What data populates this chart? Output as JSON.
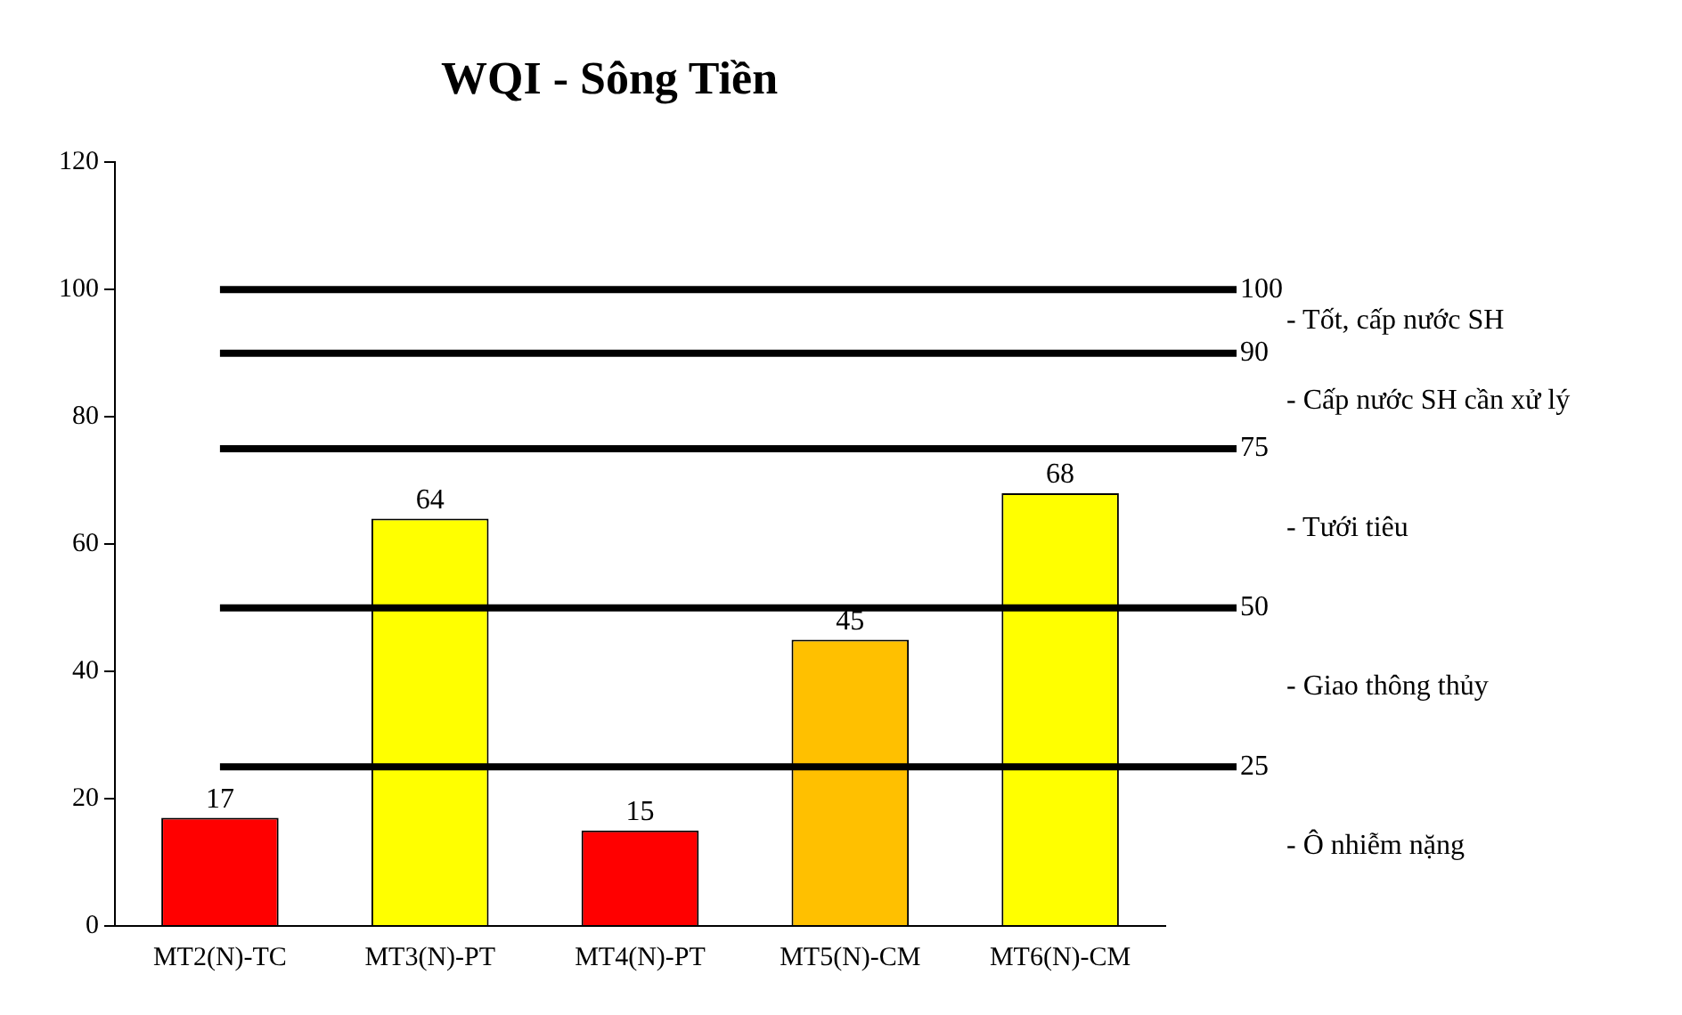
{
  "chart_data": {
    "type": "bar",
    "title": "WQI - Sông Tiền",
    "categories": [
      "MT2(N)-TC",
      "MT3(N)-PT",
      "MT4(N)-PT",
      "MT5(N)-CM",
      "MT6(N)-CM"
    ],
    "values": [
      17,
      64,
      15,
      45,
      68
    ],
    "colors": [
      "#ff0000",
      "#ffff00",
      "#ff0000",
      "#ffc000",
      "#ffff00"
    ],
    "data_labels": true,
    "ylim": [
      0,
      120
    ],
    "yticks": [
      0,
      20,
      40,
      60,
      80,
      100,
      120
    ],
    "grid": false,
    "legend": false,
    "ref_lines": [
      {
        "axis": "y",
        "value": 100,
        "label": "100",
        "color": "#000000"
      },
      {
        "axis": "y",
        "value": 90,
        "label": "90",
        "color": "#000000"
      },
      {
        "axis": "y",
        "value": 75,
        "label": "75",
        "color": "#000000"
      },
      {
        "axis": "y",
        "value": 50,
        "label": "50",
        "color": "#000000"
      },
      {
        "axis": "y",
        "value": 25,
        "label": "25",
        "color": "#000000"
      }
    ],
    "annotations": [
      "- Tốt, cấp nước SH",
      "- Cấp nước SH cần xử lý",
      "- Tưới tiêu",
      "- Giao thông thủy",
      "- Ô nhiễm nặng"
    ]
  }
}
